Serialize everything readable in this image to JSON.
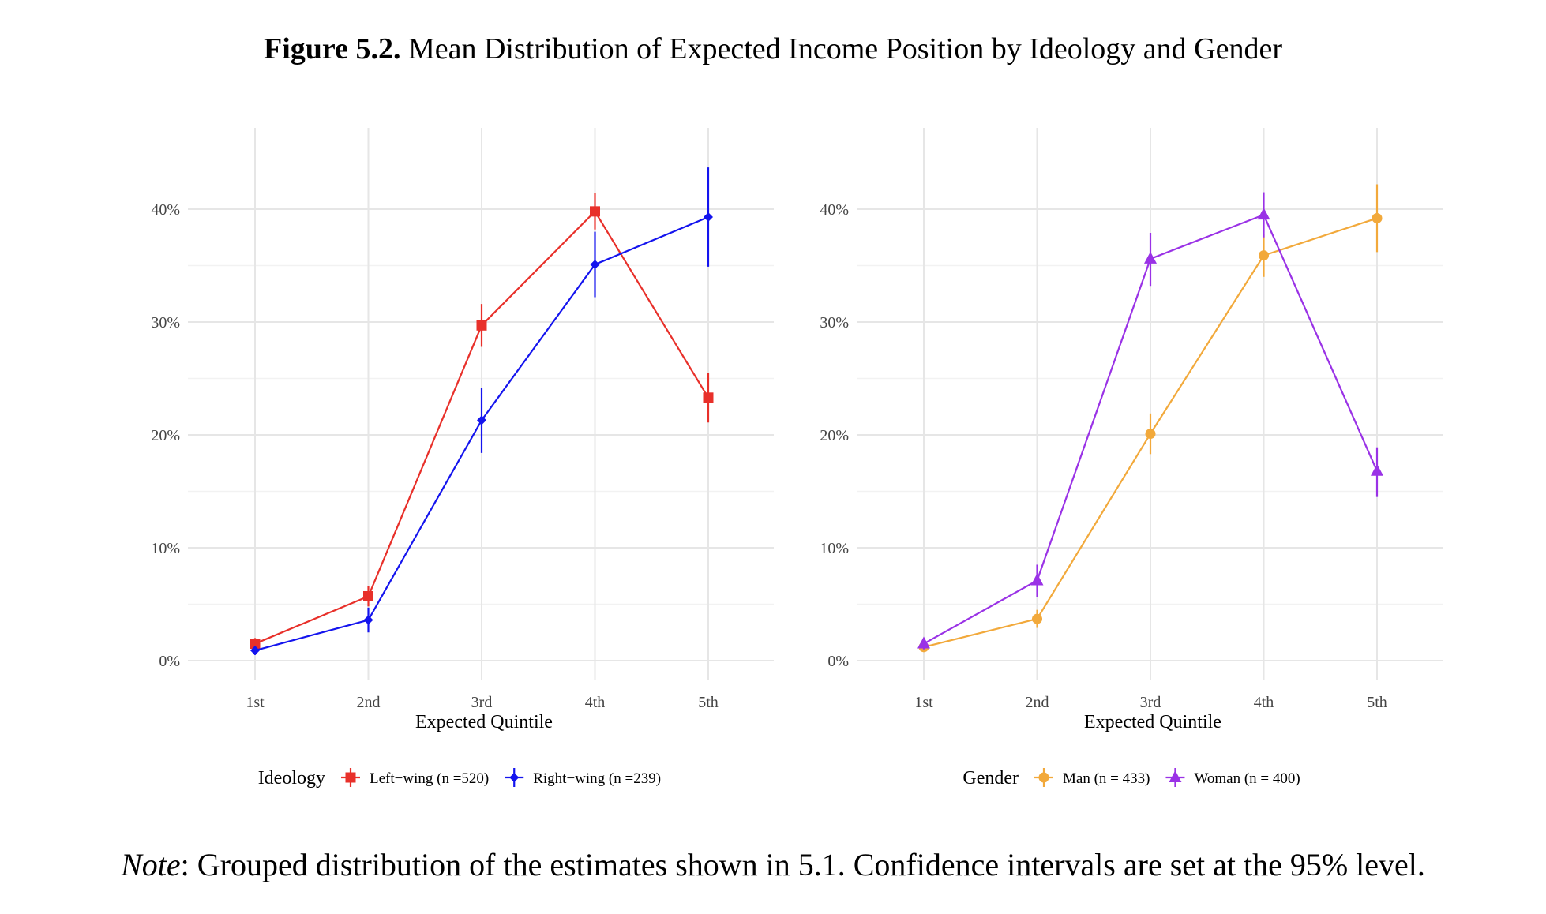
{
  "figure": {
    "label": "Figure 5.2.",
    "title": "Mean Distribution of Expected Income Position by Ideology and Gender"
  },
  "note": {
    "label": "Note",
    "text": ": Grouped distribution of the estimates shown in 5.1. Confidence intervals are set at the 95% level."
  },
  "chart_data": [
    {
      "type": "line",
      "xlabel": "Expected Quintile",
      "ylabel": "",
      "categories": [
        "1st",
        "2nd",
        "3rd",
        "4th",
        "5th"
      ],
      "ylim": [
        0,
        45
      ],
      "yticks": [
        0,
        10,
        20,
        30,
        40
      ],
      "ytick_labels": [
        "0%",
        "10%",
        "20%",
        "30%",
        "40%"
      ],
      "grid": true,
      "legend": {
        "title": "Ideology",
        "placement": "bottom"
      },
      "series": [
        {
          "name": "Left−wing (n =520)",
          "color": "#e8302a",
          "marker": "square",
          "values": [
            1.5,
            5.7,
            29.7,
            39.8,
            23.3
          ],
          "ci_low": [
            1.0,
            4.8,
            27.8,
            38.2,
            21.1
          ],
          "ci_high": [
            2.0,
            6.6,
            31.6,
            41.4,
            25.5
          ]
        },
        {
          "name": "Right−wing (n =239)",
          "color": "#1414ee",
          "marker": "diamond",
          "values": [
            0.9,
            3.6,
            21.3,
            35.1,
            39.3
          ],
          "ci_low": [
            0.5,
            2.5,
            18.4,
            32.2,
            34.9
          ],
          "ci_high": [
            1.3,
            4.7,
            24.2,
            38.0,
            43.7
          ]
        }
      ]
    },
    {
      "type": "line",
      "xlabel": "Expected Quintile",
      "ylabel": "",
      "categories": [
        "1st",
        "2nd",
        "3rd",
        "4th",
        "5th"
      ],
      "ylim": [
        0,
        45
      ],
      "yticks": [
        0,
        10,
        20,
        30,
        40
      ],
      "ytick_labels": [
        "0%",
        "10%",
        "20%",
        "30%",
        "40%"
      ],
      "grid": true,
      "legend": {
        "title": "Gender",
        "placement": "bottom"
      },
      "series": [
        {
          "name": "Man (n = 433)",
          "color": "#f2a93b",
          "marker": "circle",
          "values": [
            1.2,
            3.7,
            20.1,
            35.9,
            39.2
          ],
          "ci_low": [
            0.8,
            2.9,
            18.3,
            34.0,
            36.2
          ],
          "ci_high": [
            1.6,
            4.5,
            21.9,
            37.8,
            42.2
          ]
        },
        {
          "name": "Woman (n = 400)",
          "color": "#9a32e6",
          "marker": "triangle",
          "values": [
            1.5,
            7.1,
            35.6,
            39.5,
            16.8
          ],
          "ci_low": [
            1.0,
            5.6,
            33.2,
            37.5,
            14.5
          ],
          "ci_high": [
            2.0,
            8.5,
            37.9,
            41.5,
            18.9
          ]
        }
      ]
    }
  ]
}
